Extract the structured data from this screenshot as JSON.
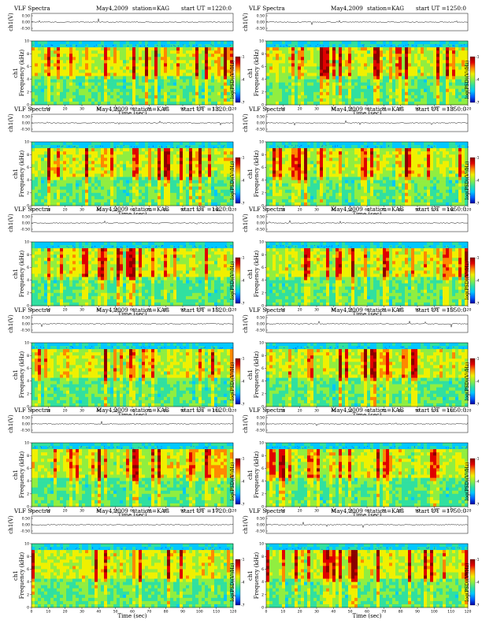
{
  "chart_data": {
    "type": "heatmap",
    "common": {
      "title": "VLF Spectra",
      "date": "May4,2009",
      "station": "station=KAG",
      "xlabel": "Time  (sec)",
      "ylabel": "Frequency  (kHz)",
      "ylabel_wave": "ch1(V)",
      "channel_label": "ch1",
      "colorbar_label": "log(PSD)(V²/Hz)",
      "xlim": [
        0,
        120
      ],
      "ylim": [
        0,
        10
      ],
      "x_ticks": [
        0,
        10,
        20,
        30,
        40,
        50,
        60,
        70,
        80,
        90,
        100,
        110,
        120
      ],
      "y_ticks": [
        0,
        2,
        4,
        6,
        8,
        10
      ],
      "wave_ticks": [
        "0.50",
        "0.00",
        "-0.50"
      ],
      "colorbar_ticks": [
        "-1",
        "-4",
        "-7"
      ],
      "colormap": [
        "#0000a0",
        "#0060ff",
        "#00c8ff",
        "#30e0a0",
        "#90ee40",
        "#f0f000",
        "#ff8800",
        "#e00000",
        "#8b0000"
      ]
    },
    "panels": [
      {
        "start": "start  UT  =1220:0"
      },
      {
        "start": "start  UT  =1250:0"
      },
      {
        "start": "start  UT  =1320:0"
      },
      {
        "start": "start  UT  =1350:0"
      },
      {
        "start": "start  UT  =1420:0"
      },
      {
        "start": "start  UT  =1450:0"
      },
      {
        "start": "start  UT  =1520:0"
      },
      {
        "start": "start  UT  =1550:0"
      },
      {
        "start": "start  UT  =1620:0"
      },
      {
        "start": "start  UT  =1650:0"
      },
      {
        "start": "start  UT  =1720:0"
      },
      {
        "start": "start  UT  =1750:0"
      }
    ]
  }
}
